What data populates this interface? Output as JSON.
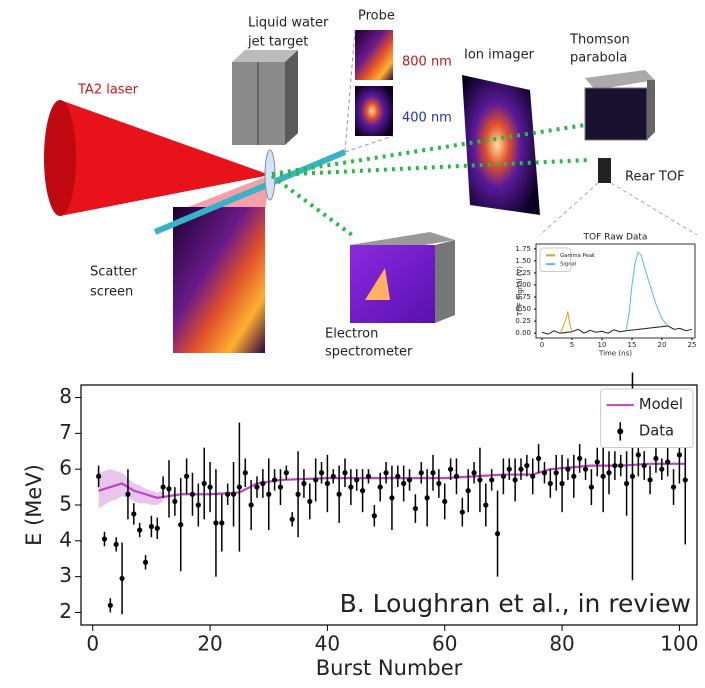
{
  "diagram": {
    "labels": [
      "TA2 laser",
      "Liquid water",
      "jet target",
      "Probe",
      "800 nm",
      "400 nm",
      "Ion imager",
      "Thomson",
      "parabola",
      "Rear TOF",
      "Scatter",
      "screen",
      "Electron",
      "spectrometer"
    ]
  },
  "chart_data": [
    {
      "type": "errorbar",
      "xlabel": "Burst Number",
      "ylabel": "E (MeV)",
      "annotation": "B. Loughran et al., in review",
      "xlim": [
        -2,
        103
      ],
      "ylim": [
        1.65,
        8.35
      ],
      "xticks": [
        0,
        20,
        40,
        60,
        80,
        100
      ],
      "yticks": [
        2,
        3,
        4,
        5,
        6,
        7,
        8
      ],
      "legend": "upper right",
      "band": {
        "color": "#d9a0e0",
        "x": [
          1,
          2,
          3,
          4,
          5,
          6,
          7,
          8,
          9,
          10,
          11,
          12
        ],
        "lower": [
          4.9,
          5.0,
          5.1,
          5.15,
          5.25,
          5.2,
          5.1,
          5.05,
          5.05,
          5.0,
          5.0,
          5.1
        ],
        "upper": [
          5.9,
          5.95,
          6.0,
          5.95,
          5.9,
          5.75,
          5.6,
          5.55,
          5.45,
          5.4,
          5.35,
          5.4
        ]
      },
      "series": [
        {
          "name": "Model",
          "color": "#c040c8",
          "x": [
            1,
            3,
            5,
            7,
            9,
            11,
            13,
            15,
            20,
            25,
            28,
            32,
            40,
            50,
            60,
            65,
            70,
            75,
            78,
            85,
            90,
            95,
            101
          ],
          "values": [
            5.4,
            5.5,
            5.6,
            5.4,
            5.3,
            5.2,
            5.25,
            5.3,
            5.3,
            5.35,
            5.6,
            5.7,
            5.75,
            5.75,
            5.75,
            5.8,
            5.85,
            5.85,
            6.0,
            6.1,
            6.1,
            6.15,
            6.15
          ]
        },
        {
          "name": "Data",
          "color": "#000000",
          "x": [
            1,
            2,
            3,
            4,
            5,
            6,
            7,
            8,
            9,
            10,
            11,
            12,
            13,
            14,
            15,
            16,
            17,
            18,
            19,
            20,
            21,
            22,
            23,
            24,
            25,
            26,
            27,
            28,
            29,
            30,
            31,
            32,
            33,
            34,
            35,
            36,
            37,
            38,
            39,
            40,
            41,
            42,
            43,
            44,
            45,
            46,
            47,
            48,
            49,
            50,
            51,
            52,
            53,
            54,
            55,
            56,
            57,
            58,
            59,
            60,
            61,
            62,
            63,
            64,
            65,
            66,
            67,
            68,
            69,
            70,
            71,
            72,
            73,
            74,
            75,
            76,
            77,
            78,
            79,
            80,
            81,
            82,
            83,
            84,
            85,
            86,
            87,
            88,
            89,
            90,
            91,
            92,
            93,
            94,
            95,
            96,
            97,
            98,
            99,
            100,
            101
          ],
          "values": [
            5.8,
            4.05,
            2.2,
            3.9,
            2.95,
            5.3,
            4.75,
            4.3,
            3.4,
            4.4,
            4.35,
            5.5,
            5.45,
            5.1,
            4.45,
            5.8,
            5.3,
            5.0,
            5.6,
            5.5,
            4.5,
            4.5,
            5.3,
            5.3,
            5.5,
            5.9,
            5.0,
            5.5,
            5.6,
            5.3,
            5.7,
            5.5,
            5.9,
            4.6,
            5.3,
            5.6,
            5.1,
            5.7,
            5.9,
            5.6,
            5.8,
            5.3,
            5.9,
            5.5,
            5.7,
            5.4,
            5.8,
            4.7,
            5.5,
            5.9,
            5.2,
            5.8,
            5.6,
            5.7,
            4.9,
            5.9,
            5.2,
            5.9,
            5.6,
            5.1,
            6.0,
            5.8,
            4.8,
            5.4,
            5.9,
            5.7,
            5.0,
            5.7,
            4.2,
            5.8,
            6.0,
            5.7,
            6.0,
            6.1,
            5.8,
            6.3,
            5.9,
            5.6,
            5.9,
            5.6,
            6.0,
            5.8,
            6.3,
            6.0,
            5.5,
            6.2,
            5.8,
            5.9,
            6.1,
            6.1,
            5.6,
            5.8,
            6.4,
            6.1,
            5.7,
            6.3,
            6.0,
            6.2,
            5.5,
            6.4,
            5.7
          ],
          "errors": [
            0.3,
            0.2,
            0.2,
            0.2,
            1.0,
            0.7,
            0.3,
            0.2,
            0.2,
            0.3,
            0.3,
            0.3,
            0.8,
            0.4,
            1.3,
            0.5,
            0.6,
            0.6,
            1.0,
            0.7,
            1.5,
            0.8,
            0.3,
            0.9,
            1.8,
            0.4,
            0.7,
            0.3,
            0.4,
            1.0,
            0.3,
            0.5,
            0.2,
            0.2,
            1.2,
            0.4,
            0.5,
            0.6,
            0.3,
            0.8,
            0.2,
            0.8,
            0.4,
            0.5,
            0.3,
            0.6,
            0.2,
            0.3,
            0.4,
            0.3,
            0.9,
            0.3,
            0.5,
            0.3,
            0.4,
            0.3,
            0.8,
            0.5,
            0.4,
            0.5,
            0.3,
            0.5,
            0.4,
            0.6,
            0.3,
            0.9,
            0.6,
            0.3,
            1.2,
            0.5,
            0.3,
            0.6,
            0.3,
            0.3,
            0.5,
            0.4,
            0.3,
            0.4,
            0.5,
            0.8,
            0.3,
            0.6,
            0.4,
            0.3,
            0.5,
            0.4,
            1.0,
            0.6,
            0.4,
            0.3,
            0.9,
            2.9,
            0.6,
            0.4,
            0.4,
            0.4,
            0.3,
            0.4,
            0.5,
            0.8,
            1.8
          ]
        }
      ]
    },
    {
      "type": "line",
      "title": "TOF Raw Data",
      "xlabel": "Time (ns)",
      "ylabel": "TOF Signal (V)",
      "xlim": [
        -1,
        25.5
      ],
      "ylim": [
        -0.1,
        1.85
      ],
      "xticks": [
        0,
        5,
        10,
        15,
        20,
        25
      ],
      "yticks": [
        {
          "value": 0,
          "label": "0.00"
        },
        {
          "value": 0.25,
          "label": "0.25"
        },
        {
          "value": 0.5,
          "label": "0.50"
        },
        {
          "value": 0.75,
          "label": "0.75"
        },
        {
          "value": 1,
          "label": "1.00"
        },
        {
          "value": 1.25,
          "label": "1.25"
        },
        {
          "value": 1.5,
          "label": "1.50"
        },
        {
          "value": 1.75,
          "label": "1.75"
        }
      ],
      "legend": "upper left",
      "series": [
        {
          "color": "#222222",
          "x": [
            0,
            1,
            2,
            3,
            5,
            6,
            7,
            8,
            9,
            10,
            11,
            12,
            13,
            14,
            21,
            22,
            23,
            24,
            25
          ],
          "values": [
            0.02,
            -0.02,
            0.05,
            0.0,
            0.03,
            0.08,
            0.0,
            0.06,
            0.02,
            0.04,
            0.0,
            0.07,
            0.03,
            0.05,
            0.15,
            0.08,
            0.1,
            0.05,
            0.08
          ]
        },
        {
          "name": "Gamma Peak",
          "color": "#e0a020",
          "x": [
            3,
            3.5,
            4,
            4.3,
            4.6,
            5
          ],
          "values": [
            0.0,
            0.12,
            0.3,
            0.45,
            0.2,
            0.03
          ]
        },
        {
          "name": "Signal",
          "color": "#5bb8e0",
          "x": [
            14,
            14.5,
            15,
            15.5,
            16,
            16.5,
            17,
            18,
            19,
            20,
            21
          ],
          "values": [
            0.05,
            0.4,
            1.0,
            1.45,
            1.68,
            1.62,
            1.4,
            1.0,
            0.6,
            0.3,
            0.15
          ]
        }
      ]
    }
  ]
}
